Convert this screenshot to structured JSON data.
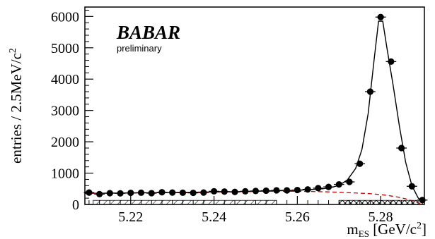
{
  "logo": {
    "text": "BABAR",
    "subtitle": "preliminary"
  },
  "chart_data": {
    "type": "scatter",
    "title": "",
    "xlabel_main": "m",
    "xlabel_sub": "ES",
    "xlabel_unit": " [GeV/c",
    "xlabel_unit_exp": "2",
    "xlabel_unit_close": "]",
    "ylabel": "entries / 2.5MeV/c",
    "ylabel_exp": "2",
    "xlim": [
      5.209,
      5.2905
    ],
    "ylim": [
      0,
      6300
    ],
    "x_ticks": [
      5.22,
      5.24,
      5.26,
      5.28
    ],
    "x_tick_labels": [
      "5.22",
      "5.24",
      "5.26",
      "5.28"
    ],
    "y_ticks": [
      0,
      1000,
      2000,
      3000,
      4000,
      5000,
      6000
    ],
    "y_tick_labels": [
      "0",
      "1000",
      "2000",
      "3000",
      "4000",
      "5000",
      "6000"
    ],
    "series": [
      {
        "kind": "data-points",
        "points": [
          [
            5.21,
            380
          ],
          [
            5.2125,
            330
          ],
          [
            5.215,
            360
          ],
          [
            5.2175,
            355
          ],
          [
            5.22,
            370
          ],
          [
            5.2225,
            375
          ],
          [
            5.225,
            360
          ],
          [
            5.2275,
            390
          ],
          [
            5.23,
            380
          ],
          [
            5.2325,
            375
          ],
          [
            5.235,
            370
          ],
          [
            5.2375,
            380
          ],
          [
            5.24,
            420
          ],
          [
            5.2425,
            410
          ],
          [
            5.245,
            400
          ],
          [
            5.2475,
            420
          ],
          [
            5.25,
            430
          ],
          [
            5.2525,
            440
          ],
          [
            5.255,
            450
          ],
          [
            5.2575,
            450
          ],
          [
            5.26,
            460
          ],
          [
            5.2625,
            480
          ],
          [
            5.265,
            520
          ],
          [
            5.2675,
            560
          ],
          [
            5.27,
            640
          ],
          [
            5.2725,
            720
          ],
          [
            5.275,
            1300
          ],
          [
            5.2775,
            3600
          ],
          [
            5.28,
            5980
          ],
          [
            5.2825,
            4560
          ],
          [
            5.285,
            1800
          ],
          [
            5.2875,
            580
          ],
          [
            5.29,
            140
          ]
        ]
      },
      {
        "kind": "fit-total",
        "curve": [
          [
            5.209,
            355
          ],
          [
            5.215,
            362
          ],
          [
            5.22,
            368
          ],
          [
            5.225,
            375
          ],
          [
            5.23,
            382
          ],
          [
            5.235,
            390
          ],
          [
            5.24,
            398
          ],
          [
            5.245,
            406
          ],
          [
            5.25,
            420
          ],
          [
            5.255,
            436
          ],
          [
            5.26,
            455
          ],
          [
            5.263,
            475
          ],
          [
            5.266,
            500
          ],
          [
            5.268,
            535
          ],
          [
            5.27,
            610
          ],
          [
            5.272,
            780
          ],
          [
            5.274,
            1150
          ],
          [
            5.2755,
            1750
          ],
          [
            5.277,
            2900
          ],
          [
            5.2785,
            4700
          ],
          [
            5.2795,
            5850
          ],
          [
            5.2805,
            5850
          ],
          [
            5.2815,
            5000
          ],
          [
            5.283,
            3800
          ],
          [
            5.2845,
            2500
          ],
          [
            5.286,
            1350
          ],
          [
            5.2875,
            600
          ],
          [
            5.289,
            210
          ],
          [
            5.2902,
            40
          ]
        ]
      },
      {
        "kind": "fit-background",
        "color": "#cc0000",
        "curve": [
          [
            5.209,
            355
          ],
          [
            5.215,
            362
          ],
          [
            5.22,
            368
          ],
          [
            5.225,
            375
          ],
          [
            5.23,
            382
          ],
          [
            5.235,
            390
          ],
          [
            5.24,
            398
          ],
          [
            5.245,
            406
          ],
          [
            5.25,
            414
          ],
          [
            5.255,
            420
          ],
          [
            5.26,
            420
          ],
          [
            5.265,
            410
          ],
          [
            5.27,
            390
          ],
          [
            5.275,
            360
          ],
          [
            5.278,
            340
          ],
          [
            5.281,
            300
          ],
          [
            5.284,
            240
          ],
          [
            5.286,
            180
          ],
          [
            5.288,
            100
          ],
          [
            5.2895,
            30
          ],
          [
            5.2902,
            0
          ]
        ]
      }
    ],
    "bands": [
      {
        "pattern": "diagonal-hatch",
        "x": [
          5.211,
          5.255
        ],
        "height": 130
      },
      {
        "pattern": "cross-hatch",
        "x": [
          5.27,
          5.289
        ],
        "height": 130
      }
    ],
    "legend": "none",
    "grid": false
  }
}
